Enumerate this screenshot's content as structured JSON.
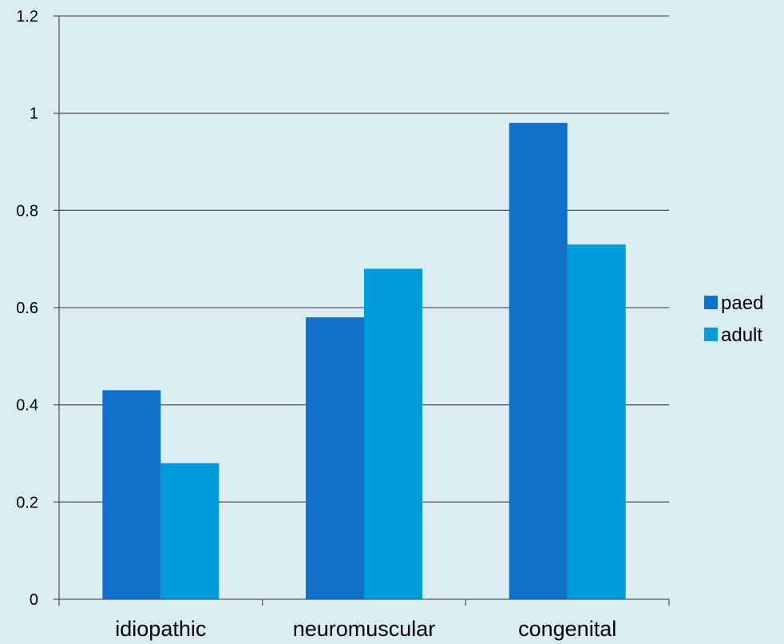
{
  "chart_data": {
    "type": "bar",
    "title": "",
    "xlabel": "",
    "ylabel": "",
    "categories": [
      "idiopathic",
      "neuromuscular",
      "congenital"
    ],
    "series": [
      {
        "name": "paed",
        "values": [
          0.43,
          0.58,
          0.98
        ],
        "color": "#1170C7"
      },
      {
        "name": "adult",
        "values": [
          0.28,
          0.68,
          0.73
        ],
        "color": "#009CDA"
      }
    ],
    "ylim": [
      0,
      1.2
    ],
    "yticks": [
      0,
      0.2,
      0.4,
      0.6,
      0.8,
      1,
      1.2
    ],
    "ytick_labels": [
      "0",
      "0.2",
      "0.4",
      "0.6",
      "0.8",
      "1",
      "1.2"
    ],
    "grid": true,
    "legend_position": "right",
    "background_color": "#DAEDF3",
    "gridline_color": "#595959"
  }
}
